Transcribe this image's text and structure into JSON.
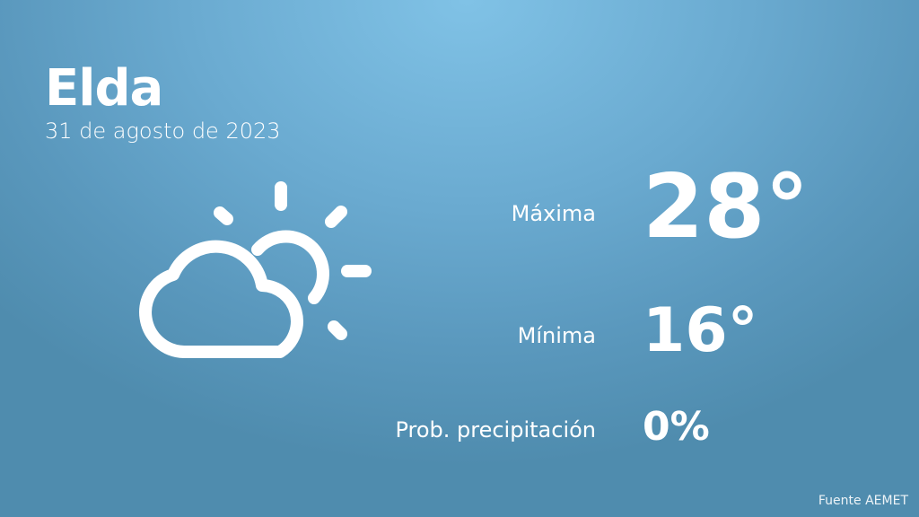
{
  "location": {
    "city": "Elda",
    "date": "31 de agosto de 2023"
  },
  "weather": {
    "icon": "partly-cloudy-icon",
    "max_label": "Máxima",
    "max_value": "28°",
    "min_label": "Mínima",
    "min_value": "16°",
    "precip_label": "Prob. precipitación",
    "precip_value": "0%"
  },
  "footer": {
    "source": "Fuente AEMET"
  }
}
